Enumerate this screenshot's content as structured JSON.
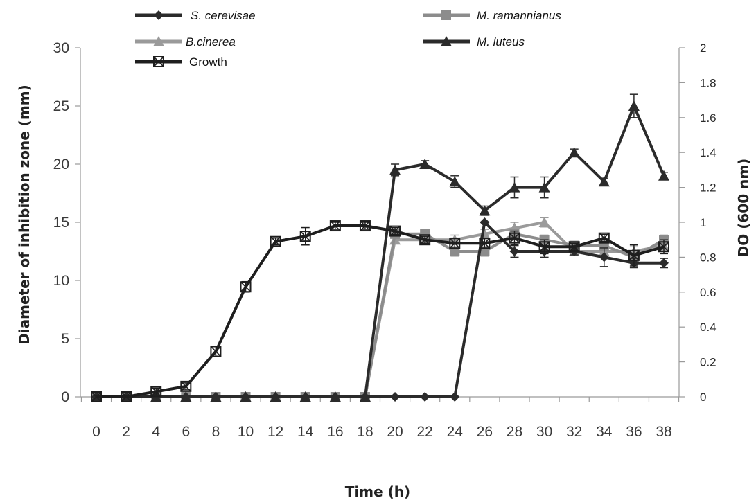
{
  "chart_data": {
    "type": "line",
    "title": "",
    "xlabel": "Time (h)",
    "ylabel_left": "Diameter of inhibition  zone (mm)",
    "ylabel_right": "DO (600 nm)",
    "x": [
      0,
      2,
      4,
      6,
      8,
      10,
      12,
      14,
      16,
      18,
      20,
      22,
      24,
      26,
      28,
      30,
      32,
      34,
      36,
      38
    ],
    "x_tick_labels": [
      "0",
      "2",
      "4",
      "6",
      "8",
      "10",
      "12",
      "14",
      "16",
      "18",
      "20",
      "22",
      "24",
      "26",
      "28",
      "30",
      "32",
      "34",
      "36",
      "38"
    ],
    "ylim_left": [
      0,
      30
    ],
    "y_ticks_left": [
      "0",
      "5",
      "10",
      "15",
      "20",
      "25",
      "30"
    ],
    "ylim_right": [
      0,
      2
    ],
    "y_ticks_right": [
      "0",
      "0.2",
      "0.4",
      "0.6",
      "0.8",
      "1",
      "1.2",
      "1.4",
      "1.6",
      "1.8",
      "2"
    ],
    "legend_placement": "top",
    "series": [
      {
        "name": "S. cerevisae",
        "axis": "left",
        "marker": "diamond",
        "color": "#2b2b2b",
        "values": [
          0,
          0,
          0,
          0,
          0,
          0,
          0,
          0,
          0,
          0,
          0,
          0,
          0,
          15,
          12.5,
          12.5,
          12.5,
          12,
          11.5,
          11.5
        ],
        "errors": [
          0,
          0,
          0,
          0,
          0,
          0,
          0,
          0,
          0,
          0,
          0,
          0,
          0,
          0,
          0.5,
          0.5,
          0.3,
          0.8,
          0.4,
          0.4
        ]
      },
      {
        "name": "M. ramannianus",
        "axis": "left",
        "marker": "square",
        "color": "#8c8c8c",
        "values": [
          0,
          0,
          0,
          0,
          0,
          0,
          0,
          0,
          0,
          0,
          14,
          14,
          12.5,
          12.5,
          14,
          13.5,
          13,
          13,
          12,
          13.5
        ],
        "errors": [
          0,
          0,
          0,
          0,
          0,
          0,
          0,
          0,
          0,
          0,
          0.3,
          0.3,
          0.4,
          0.4,
          0.4,
          0.4,
          0.3,
          0.4,
          0.4,
          0.4
        ]
      },
      {
        "name": "B.cinerea",
        "axis": "left",
        "marker": "triangle",
        "color": "#9a9a9a",
        "values": [
          0,
          0,
          0,
          0,
          0,
          0,
          0,
          0,
          0,
          0,
          13.5,
          13.5,
          13.5,
          14,
          14.5,
          15,
          12.5,
          12.5,
          12.5,
          13
        ],
        "errors": [
          0,
          0,
          0,
          0,
          0,
          0,
          0,
          0,
          0,
          0,
          0.3,
          0.3,
          0.4,
          0.4,
          0.5,
          0.4,
          0.3,
          0.4,
          0.4,
          0.4
        ]
      },
      {
        "name": "M. luteus",
        "axis": "left",
        "marker": "triangle",
        "color": "#2b2b2b",
        "values": [
          0,
          0,
          0,
          0,
          0,
          0,
          0,
          0,
          0,
          0,
          19.5,
          20,
          18.5,
          16,
          18,
          18,
          21,
          18.5,
          25,
          19
        ],
        "errors": [
          0,
          0,
          0,
          0,
          0,
          0,
          0,
          0,
          0,
          0,
          0.5,
          0.3,
          0.5,
          0.4,
          0.9,
          0.9,
          0.3,
          0.3,
          1.0,
          0.3
        ]
      },
      {
        "name": "Growth",
        "axis": "right",
        "marker": "boxed-x",
        "color": "#1e1e1e",
        "values": [
          0,
          0,
          0.03,
          0.06,
          0.26,
          0.63,
          0.89,
          0.92,
          0.98,
          0.98,
          0.95,
          0.9,
          0.88,
          0.88,
          0.91,
          0.86,
          0.86,
          0.91,
          0.81,
          0.86
        ],
        "errors": [
          0,
          0,
          0.02,
          0.02,
          0.03,
          0.03,
          0.02,
          0.05,
          0.02,
          0.02,
          0.02,
          0.02,
          0.03,
          0.03,
          0.04,
          0.04,
          0.02,
          0.02,
          0.06,
          0.04
        ]
      }
    ]
  }
}
